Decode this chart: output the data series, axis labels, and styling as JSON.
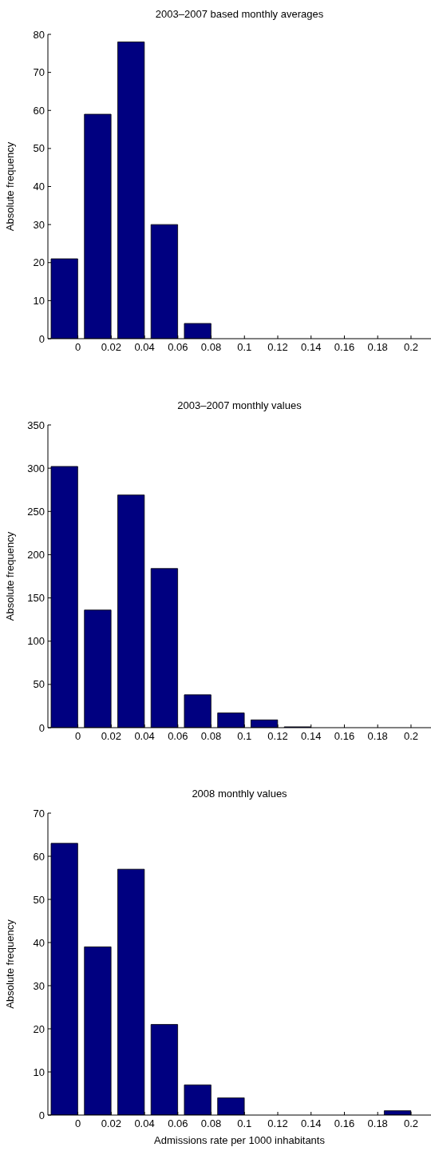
{
  "chart_data": [
    {
      "type": "histogram",
      "title": "2003–2007 based monthly averages",
      "ylabel": "Absolute frequency",
      "bins": [
        -0.018,
        0.002,
        0.022,
        0.042,
        0.062,
        0.082,
        0.102,
        0.122,
        0.142,
        0.162,
        0.182,
        0.202
      ],
      "values": [
        21,
        59,
        78,
        30,
        4,
        0,
        0,
        0,
        0,
        0,
        0
      ],
      "color": "#000080",
      "xlim": [
        -0.018,
        0.212
      ],
      "xticks": [
        0,
        0.02,
        0.04,
        0.06,
        0.08,
        0.1,
        0.12,
        0.14,
        0.16,
        0.18,
        0.2
      ],
      "ylim": [
        0,
        80
      ],
      "yticks": [
        0,
        10,
        20,
        30,
        40,
        50,
        60,
        70,
        80
      ],
      "grid": false
    },
    {
      "type": "histogram",
      "title": "2003–2007 monthly values",
      "ylabel": "Absolute frequency",
      "bins": [
        -0.018,
        0.002,
        0.022,
        0.042,
        0.062,
        0.082,
        0.102,
        0.122,
        0.142,
        0.162,
        0.182,
        0.202
      ],
      "values": [
        302,
        136,
        269,
        184,
        38,
        17,
        9,
        1,
        0,
        0,
        0
      ],
      "color": "#000080",
      "xlim": [
        -0.018,
        0.212
      ],
      "xticks": [
        0,
        0.02,
        0.04,
        0.06,
        0.08,
        0.1,
        0.12,
        0.14,
        0.16,
        0.18,
        0.2
      ],
      "ylim": [
        0,
        350
      ],
      "yticks": [
        0,
        50,
        100,
        150,
        200,
        250,
        300,
        350
      ],
      "grid": false
    },
    {
      "type": "histogram",
      "title": "2008 monthly values",
      "xlabel": "Admissions rate per 1000 inhabitants",
      "ylabel": "Absolute frequency",
      "bins": [
        -0.018,
        0.002,
        0.022,
        0.042,
        0.062,
        0.082,
        0.102,
        0.122,
        0.142,
        0.162,
        0.182,
        0.202
      ],
      "values": [
        63,
        39,
        57,
        21,
        7,
        4,
        0,
        0,
        0,
        0,
        1
      ],
      "color": "#000080",
      "xlim": [
        -0.018,
        0.212
      ],
      "xticks": [
        0,
        0.02,
        0.04,
        0.06,
        0.08,
        0.1,
        0.12,
        0.14,
        0.16,
        0.18,
        0.2
      ],
      "ylim": [
        0,
        70
      ],
      "yticks": [
        0,
        10,
        20,
        30,
        40,
        50,
        60,
        70
      ],
      "grid": false
    }
  ]
}
